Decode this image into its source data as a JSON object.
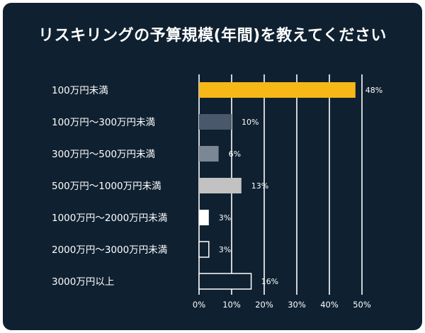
{
  "title": "リスキリングの予算規模(年間)を教えてください",
  "chart_data": {
    "type": "bar",
    "orientation": "horizontal",
    "categories": [
      "100万円未満",
      "100万円〜300万円未満",
      "300万円〜500万円未満",
      "500万円〜1000万円未満",
      "1000万円〜2000万円未満",
      "2000万円〜3000万円未満",
      "3000万円以上"
    ],
    "values": [
      48,
      10,
      6,
      13,
      3,
      3,
      16
    ],
    "value_labels": [
      "48%",
      "10%",
      "6%",
      "13%",
      "3%",
      "3%",
      "16%"
    ],
    "xlim": [
      0,
      50
    ],
    "xticks": [
      0,
      10,
      20,
      30,
      40,
      50
    ],
    "xtick_labels": [
      "0%",
      "10%",
      "20%",
      "30%",
      "40%",
      "50%"
    ],
    "grid": true,
    "colors": {
      "background": "#0f2131",
      "grid": "#ffffff",
      "bars": [
        {
          "fill": "#f6b817",
          "stroke": "none"
        },
        {
          "fill": "#49586a",
          "stroke": "none"
        },
        {
          "fill": "#7b8794",
          "stroke": "none"
        },
        {
          "fill": "#c2c2c2",
          "stroke": "none"
        },
        {
          "fill": "#ffffff",
          "stroke": "none"
        },
        {
          "fill": "#0f2131",
          "stroke": "#ffffff"
        },
        {
          "fill": "#0f2131",
          "stroke": "#ffffff"
        }
      ]
    }
  }
}
